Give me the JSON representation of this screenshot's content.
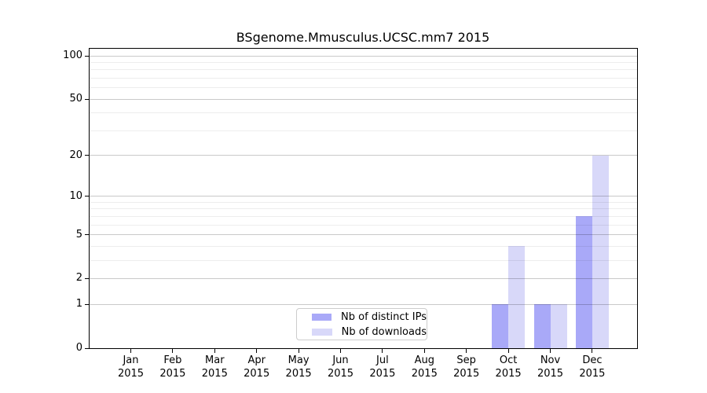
{
  "title": "BSgenome.Mmusculus.UCSC.mm7 2015",
  "chart_data": {
    "type": "bar",
    "title": "BSgenome.Mmusculus.UCSC.mm7 2015",
    "categories": [
      {
        "month": "Jan",
        "year": "2015"
      },
      {
        "month": "Feb",
        "year": "2015"
      },
      {
        "month": "Mar",
        "year": "2015"
      },
      {
        "month": "Apr",
        "year": "2015"
      },
      {
        "month": "May",
        "year": "2015"
      },
      {
        "month": "Jun",
        "year": "2015"
      },
      {
        "month": "Jul",
        "year": "2015"
      },
      {
        "month": "Aug",
        "year": "2015"
      },
      {
        "month": "Sep",
        "year": "2015"
      },
      {
        "month": "Oct",
        "year": "2015"
      },
      {
        "month": "Nov",
        "year": "2015"
      },
      {
        "month": "Dec",
        "year": "2015"
      }
    ],
    "series": [
      {
        "name": "Nb of distinct IPs",
        "color": "#a9a9f8",
        "values": [
          0,
          0,
          0,
          0,
          0,
          0,
          0,
          0,
          0,
          1,
          1,
          7
        ]
      },
      {
        "name": "Nb of downloads",
        "color": "#d8d8f9",
        "values": [
          0,
          0,
          0,
          0,
          0,
          0,
          0,
          0,
          0,
          4,
          1,
          20
        ]
      }
    ],
    "y_axis": {
      "scale": "log1p",
      "ylim": [
        0,
        100
      ],
      "ticks": [
        0,
        1,
        2,
        5,
        10,
        20,
        50,
        100
      ],
      "minor_ticks": [
        3,
        4,
        6,
        7,
        8,
        9,
        30,
        40,
        60,
        70,
        80,
        90
      ]
    },
    "x_axis": {
      "ylabel": "",
      "grid_vertical": false
    },
    "legend_position": "lower center",
    "grid": true
  }
}
